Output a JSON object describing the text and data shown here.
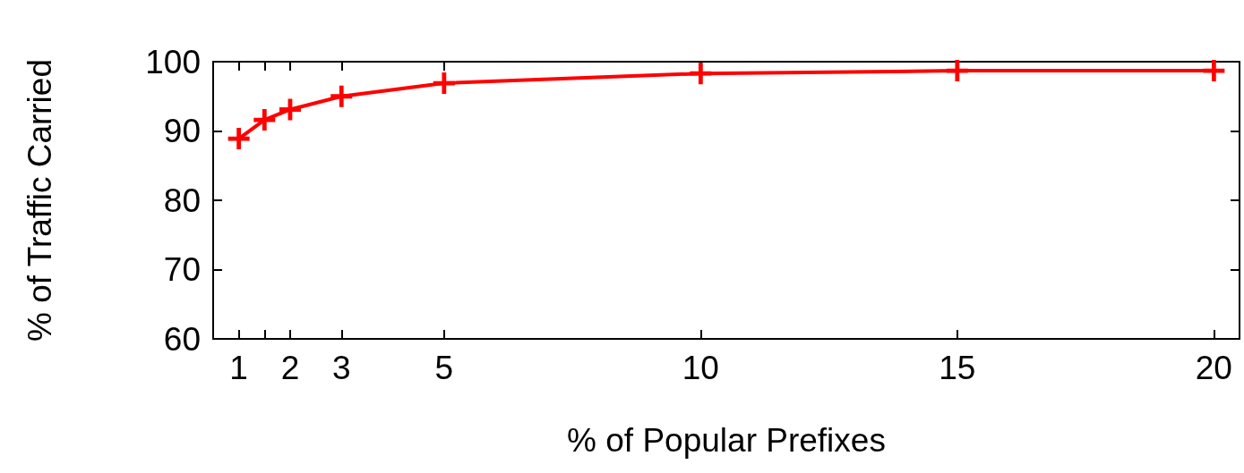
{
  "chart_data": {
    "type": "line",
    "xlabel": "% of Popular Prefixes",
    "ylabel": "% of Traffic Carried",
    "x": [
      1,
      1.5,
      2,
      3,
      5,
      10,
      15,
      20
    ],
    "series": [
      {
        "color": "#ff0000",
        "values": [
          88.9,
          91.6,
          93.1,
          95.0,
          96.9,
          98.3,
          98.7,
          98.7
        ]
      }
    ],
    "xlim": [
      0.5,
      20.5
    ],
    "xticks": [
      1,
      {
        "value": 1.5,
        "label": null
      },
      2,
      3,
      5,
      10,
      15,
      20
    ],
    "ylim": [
      60,
      100
    ],
    "yticks": [
      60,
      70,
      80,
      90,
      100
    ],
    "grid": false,
    "marker": "cross",
    "line_style": "solid"
  }
}
